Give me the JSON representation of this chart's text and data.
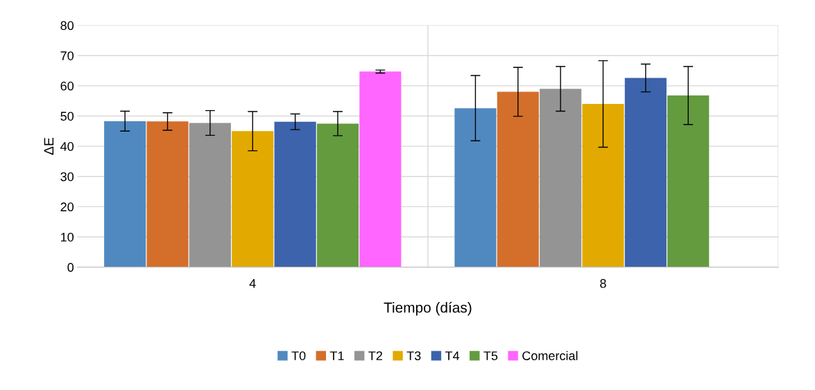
{
  "chart_data": {
    "type": "bar",
    "xlabel": "Tiempo (días)",
    "ylabel": "ΔE",
    "categories": [
      "4",
      "8"
    ],
    "series": [
      {
        "name": "T0",
        "color": "#5089c0",
        "values": [
          48.3,
          52.6
        ],
        "errors": [
          3.3,
          10.8
        ]
      },
      {
        "name": "T1",
        "color": "#d46f2b",
        "values": [
          48.2,
          58.0
        ],
        "errors": [
          2.9,
          8.1
        ]
      },
      {
        "name": "T2",
        "color": "#949494",
        "values": [
          47.7,
          59.0
        ],
        "errors": [
          4.1,
          7.4
        ]
      },
      {
        "name": "T3",
        "color": "#e2aa00",
        "values": [
          45.0,
          54.0
        ],
        "errors": [
          6.5,
          14.3
        ]
      },
      {
        "name": "T4",
        "color": "#3c63ab",
        "values": [
          48.1,
          62.6
        ],
        "errors": [
          2.6,
          4.6
        ]
      },
      {
        "name": "T5",
        "color": "#649b3f",
        "values": [
          47.5,
          56.8
        ],
        "errors": [
          4.0,
          9.6
        ]
      },
      {
        "name": "Comercial",
        "color": "#ff66ff",
        "values": [
          64.7,
          null
        ],
        "errors": [
          0.5,
          null
        ]
      }
    ],
    "ylim": [
      0,
      80
    ],
    "yticks": [
      0,
      10,
      20,
      30,
      40,
      50,
      60,
      70,
      80
    ],
    "grid": true,
    "legend": "bottom"
  }
}
